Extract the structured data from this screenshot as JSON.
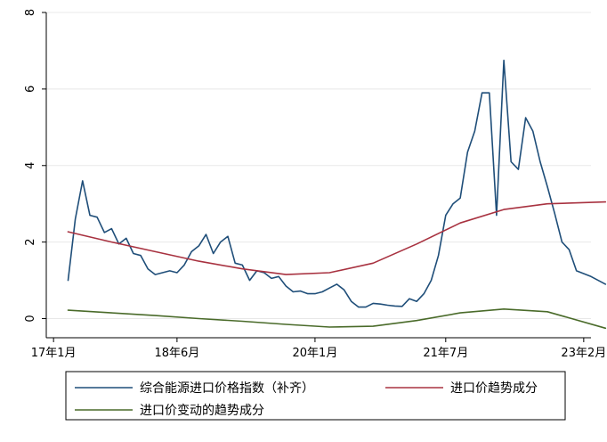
{
  "chart_data": {
    "type": "line",
    "xlabel": "",
    "ylabel": "",
    "xlim": [
      "2016-12",
      "2023-03"
    ],
    "ylim": [
      -0.5,
      8
    ],
    "x_ticks": [
      "17年1月",
      "18年6月",
      "20年1月",
      "21年7月",
      "23年2月"
    ],
    "y_ticks": [
      "0",
      "2",
      "4",
      "6",
      "8"
    ],
    "grid": "horizontal",
    "legend_position": "bottom",
    "series": [
      {
        "name": "综合能源进口价格指数（补齐）",
        "color": "#1f4e79",
        "points": [
          [
            "2017-03",
            1.0
          ],
          [
            "2017-04",
            2.6
          ],
          [
            "2017-05",
            3.6
          ],
          [
            "2017-06",
            2.7
          ],
          [
            "2017-07",
            2.65
          ],
          [
            "2017-08",
            2.25
          ],
          [
            "2017-09",
            2.35
          ],
          [
            "2017-10",
            1.95
          ],
          [
            "2017-11",
            2.1
          ],
          [
            "2017-12",
            1.7
          ],
          [
            "2018-01",
            1.65
          ],
          [
            "2018-02",
            1.3
          ],
          [
            "2018-03",
            1.15
          ],
          [
            "2018-04",
            1.2
          ],
          [
            "2018-05",
            1.25
          ],
          [
            "2018-06",
            1.2
          ],
          [
            "2018-07",
            1.4
          ],
          [
            "2018-08",
            1.75
          ],
          [
            "2018-09",
            1.9
          ],
          [
            "2018-10",
            2.2
          ],
          [
            "2018-11",
            1.7
          ],
          [
            "2018-12",
            2.0
          ],
          [
            "2019-01",
            2.15
          ],
          [
            "2019-02",
            1.45
          ],
          [
            "2019-03",
            1.4
          ],
          [
            "2019-04",
            1.0
          ],
          [
            "2019-05",
            1.25
          ],
          [
            "2019-06",
            1.2
          ],
          [
            "2019-07",
            1.05
          ],
          [
            "2019-08",
            1.1
          ],
          [
            "2019-09",
            0.85
          ],
          [
            "2019-10",
            0.7
          ],
          [
            "2019-11",
            0.72
          ],
          [
            "2019-12",
            0.65
          ],
          [
            "2020-01",
            0.65
          ],
          [
            "2020-02",
            0.7
          ],
          [
            "2020-03",
            0.8
          ],
          [
            "2020-04",
            0.9
          ],
          [
            "2020-05",
            0.75
          ],
          [
            "2020-06",
            0.45
          ],
          [
            "2020-07",
            0.3
          ],
          [
            "2020-08",
            0.3
          ],
          [
            "2020-09",
            0.4
          ],
          [
            "2020-10",
            0.38
          ],
          [
            "2020-11",
            0.35
          ],
          [
            "2020-12",
            0.33
          ],
          [
            "2021-01",
            0.32
          ],
          [
            "2021-02",
            0.52
          ],
          [
            "2021-03",
            0.45
          ],
          [
            "2021-04",
            0.65
          ],
          [
            "2021-05",
            1.0
          ],
          [
            "2021-06",
            1.65
          ],
          [
            "2021-07",
            2.7
          ],
          [
            "2021-08",
            3.0
          ],
          [
            "2021-09",
            3.15
          ],
          [
            "2021-10",
            4.35
          ],
          [
            "2021-11",
            4.9
          ],
          [
            "2021-12",
            5.9
          ],
          [
            "2022-01",
            5.9
          ],
          [
            "2022-02",
            2.7
          ],
          [
            "2022-03",
            6.75
          ],
          [
            "2022-04",
            4.1
          ],
          [
            "2022-05",
            3.9
          ],
          [
            "2022-06",
            5.25
          ],
          [
            "2022-07",
            4.9
          ],
          [
            "2022-08",
            4.1
          ],
          [
            "2022-09",
            3.45
          ],
          [
            "2022-10",
            2.75
          ],
          [
            "2022-11",
            2.0
          ],
          [
            "2022-12",
            1.8
          ],
          [
            "2023-01",
            1.25
          ],
          [
            "2023-03",
            1.1
          ],
          [
            "2023-05",
            0.9
          ]
        ]
      },
      {
        "name": "进口价趋势成分",
        "color": "#a83240",
        "points": [
          [
            "2017-03",
            2.27
          ],
          [
            "2017-09",
            2.0
          ],
          [
            "2018-03",
            1.75
          ],
          [
            "2018-09",
            1.5
          ],
          [
            "2019-03",
            1.3
          ],
          [
            "2019-09",
            1.15
          ],
          [
            "2020-03",
            1.2
          ],
          [
            "2020-09",
            1.45
          ],
          [
            "2021-03",
            1.95
          ],
          [
            "2021-09",
            2.5
          ],
          [
            "2022-03",
            2.85
          ],
          [
            "2022-09",
            3.0
          ],
          [
            "2023-05",
            3.05
          ]
        ]
      },
      {
        "name": "进口价变动的趋势成分",
        "color": "#4a6b2a",
        "points": [
          [
            "2017-03",
            0.22
          ],
          [
            "2017-09",
            0.15
          ],
          [
            "2018-03",
            0.08
          ],
          [
            "2018-09",
            0.0
          ],
          [
            "2019-03",
            -0.07
          ],
          [
            "2019-09",
            -0.15
          ],
          [
            "2020-03",
            -0.22
          ],
          [
            "2020-09",
            -0.2
          ],
          [
            "2021-03",
            -0.05
          ],
          [
            "2021-09",
            0.15
          ],
          [
            "2022-03",
            0.25
          ],
          [
            "2022-09",
            0.18
          ],
          [
            "2023-05",
            -0.25
          ]
        ]
      }
    ]
  }
}
